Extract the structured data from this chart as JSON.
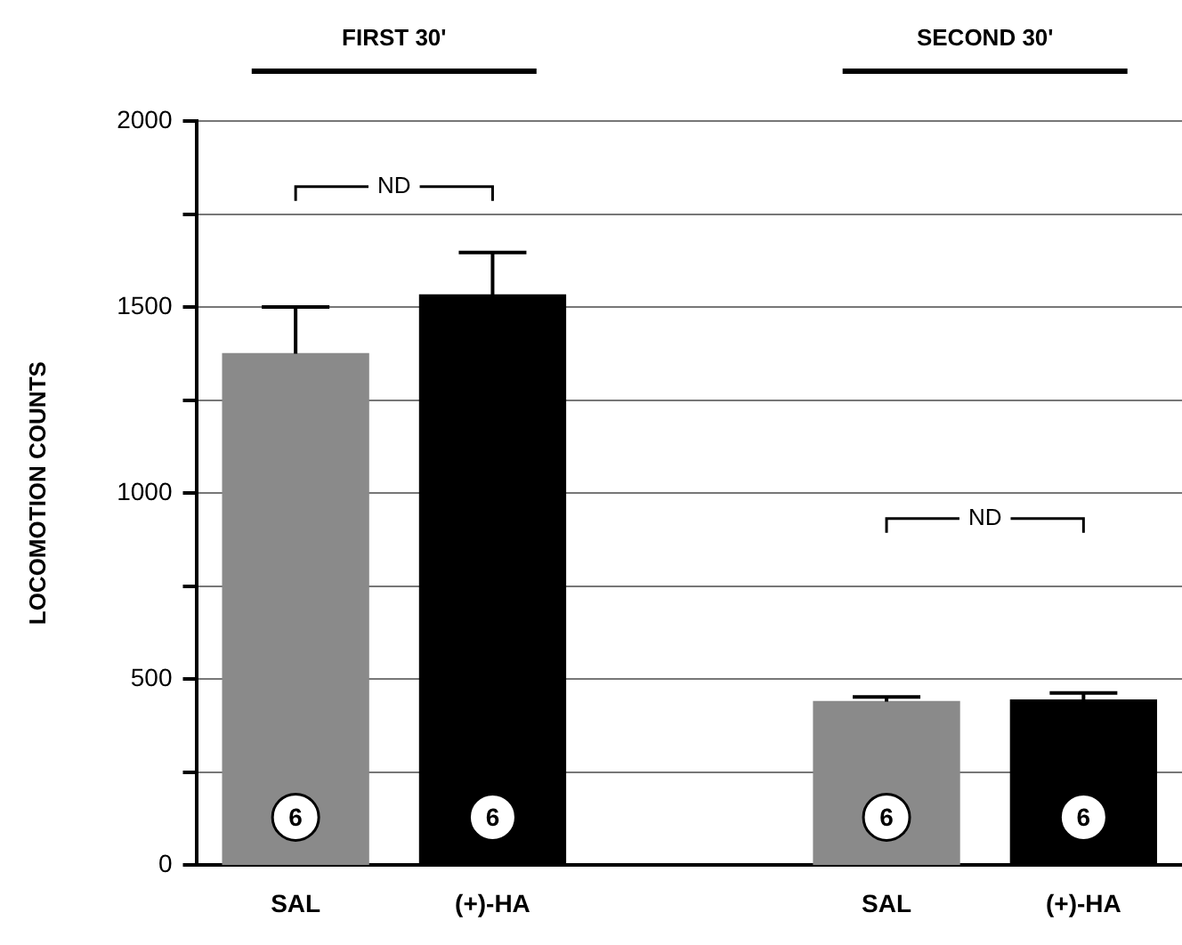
{
  "chart_data": {
    "type": "bar",
    "ylabel": "LOCOMOTION COUNTS",
    "categories": [
      "SAL",
      "(+)-HA",
      null,
      "SAL",
      "(+)-HA"
    ],
    "values": [
      1375,
      1533,
      null,
      440,
      444
    ],
    "colors": [
      "#8a8a8a",
      "#000000",
      "#000000",
      "#8a8a8a",
      "#000000"
    ],
    "errors": [
      [
        1375,
        1500
      ],
      [
        1533,
        1647
      ],
      null,
      [
        440,
        452
      ],
      [
        444,
        463
      ]
    ],
    "ylim": [
      0,
      2000
    ],
    "yticks": [
      0,
      {
        "value": 250,
        "label": null
      },
      500,
      {
        "value": 750,
        "label": null
      },
      1000,
      {
        "value": 1250,
        "label": null
      },
      1500,
      {
        "value": 1750,
        "label": null
      },
      2000
    ],
    "grid": "y",
    "annotations": [
      "FIRST 30'",
      "SECOND 30'",
      "ND",
      "ND",
      "6",
      "6",
      "6",
      "6"
    ]
  }
}
